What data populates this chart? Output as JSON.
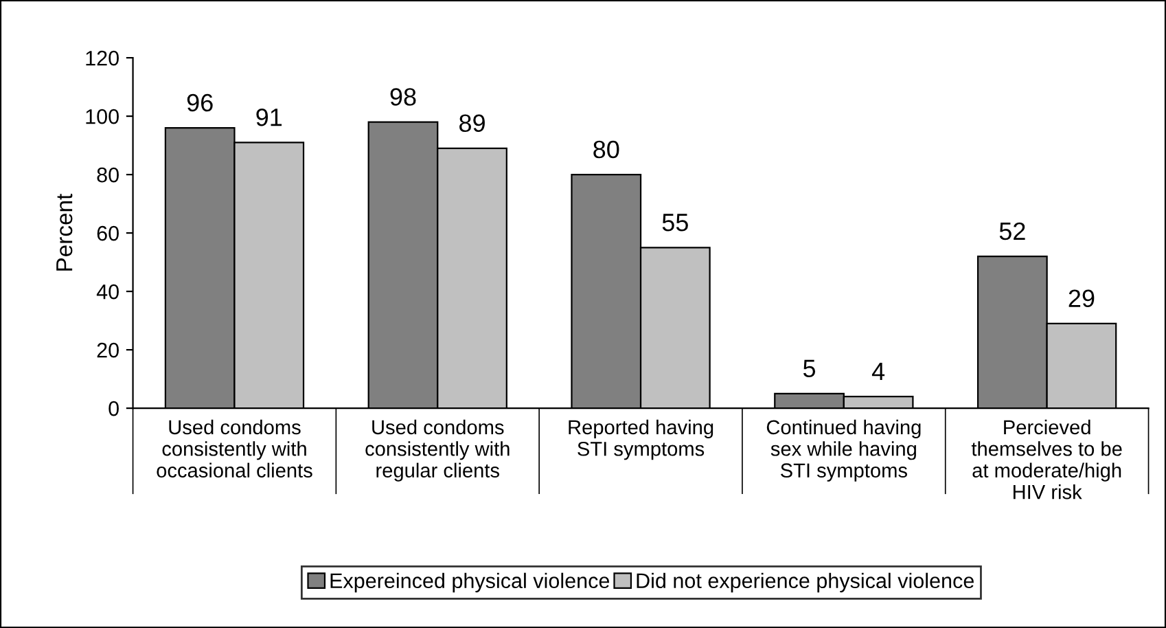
{
  "chart_data": {
    "type": "bar",
    "ylabel": "Percent",
    "categories": [
      "Used condoms\nconsistently with\noccasional clients",
      "Used condoms\nconsistently with\nregular clients",
      "Reported having\nSTI symptoms",
      "Continued having\nsex while having\nSTI symptoms",
      "Percieved\nthemselves to be\nat moderate/high\nHIV risk"
    ],
    "series": [
      {
        "name": "Expereinced physical violence",
        "color": "#808080",
        "values": [
          96,
          98,
          80,
          5,
          52
        ]
      },
      {
        "name": "Did not experience physical violence",
        "color": "#c0c0c0",
        "values": [
          91,
          89,
          55,
          4,
          29
        ]
      }
    ],
    "ylim": [
      0,
      120
    ],
    "yticks": [
      0,
      20,
      40,
      60,
      80,
      100,
      120
    ],
    "grid": false,
    "legend": "bottom",
    "data_labels": true
  }
}
